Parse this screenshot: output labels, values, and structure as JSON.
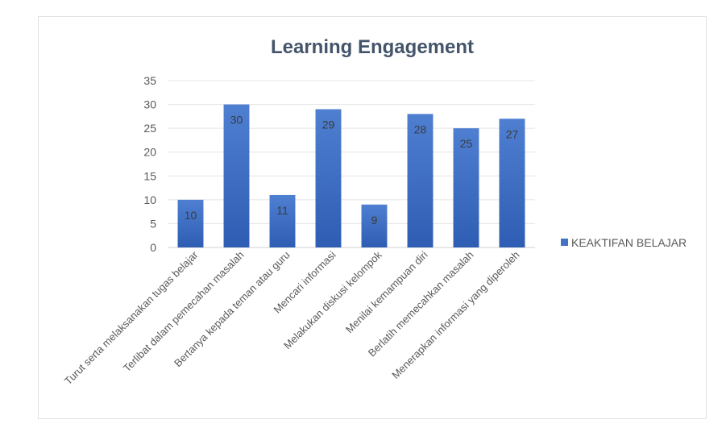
{
  "chart_data": {
    "type": "bar",
    "title": "Learning Engagement",
    "categories": [
      "Turut serta melaksanakan tugas belajar",
      "Terlibat dalam pemecahan masalah",
      "Bertanya kepada teman atau guru",
      "Mencari informasi",
      "Melakukan diskusi kelompok",
      "Menilai kemampuan diri",
      "Berlatih memecahkan masalah",
      "Menerapkan informasi yang diperoleh"
    ],
    "series": [
      {
        "name": "KEAKTIFAN BELAJAR",
        "values": [
          10,
          30,
          11,
          29,
          9,
          28,
          25,
          27
        ],
        "color": "#4472c4"
      }
    ],
    "ylim": [
      0,
      35
    ],
    "yticks": [
      0,
      5,
      10,
      15,
      20,
      25,
      30,
      35
    ],
    "grid": true,
    "legend_position": "right",
    "data_labels": "inside-end"
  }
}
